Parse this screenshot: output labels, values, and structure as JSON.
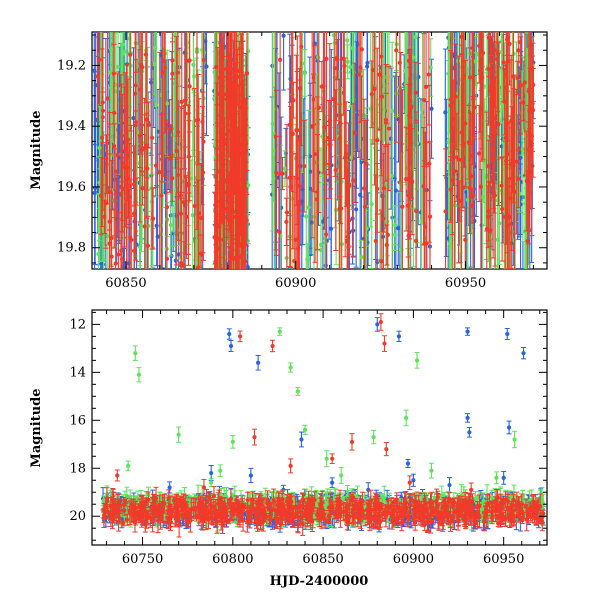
{
  "chart_data": [
    {
      "type": "scatter",
      "panel": "top",
      "xlabel": "",
      "ylabel": "Magnitude",
      "xlim": [
        60840,
        60974
      ],
      "ylim": [
        19.87,
        19.09
      ],
      "y_inverted": true,
      "xticks": [
        60850,
        60900,
        60950
      ],
      "yticks": [
        19.2,
        19.4,
        19.6,
        19.8
      ],
      "series": [
        {
          "color": "#2a62e0",
          "segments": [
            [
              60840,
              60874,
              19.1,
              19.87
            ],
            [
              60876,
              60886,
              19.15,
              19.87
            ],
            [
              60892,
              60940,
              19.1,
              19.87
            ],
            [
              60944,
              60970,
              19.1,
              19.8
            ]
          ],
          "n": 380,
          "seed": 11
        },
        {
          "color": "#5ee35b",
          "segments": [
            [
              60841,
              60873,
              19.1,
              19.87
            ],
            [
              60876,
              60886,
              19.15,
              19.85
            ],
            [
              60893,
              60940,
              19.1,
              19.85
            ],
            [
              60944,
              60970,
              19.1,
              19.8
            ]
          ],
          "n": 380,
          "seed": 23
        },
        {
          "color": "#f23a2a",
          "segments": [
            [
              60841,
              60873,
              19.15,
              19.87
            ],
            [
              60876,
              60886,
              19.2,
              19.85
            ],
            [
              60894,
              60940,
              19.12,
              19.85
            ],
            [
              60944,
              60970,
              19.1,
              19.8
            ]
          ],
          "n": 440,
          "seed": 37
        }
      ]
    },
    {
      "type": "scatter",
      "panel": "bottom",
      "xlabel": "HJD-2400000",
      "ylabel": "Magnitude",
      "xlim": [
        60722,
        60974
      ],
      "ylim": [
        21.2,
        11.4
      ],
      "y_inverted": true,
      "xticks": [
        60750,
        60800,
        60850,
        60900,
        60950
      ],
      "yticks": [
        12,
        14,
        16,
        18,
        20
      ],
      "series": [
        {
          "color": "#2a62e0",
          "band": [
            60728,
            60972,
            19.3,
            20.1
          ],
          "n": 600,
          "seed": 51,
          "outliers": [
            [
              60798,
              12.4
            ],
            [
              60799,
              12.9
            ],
            [
              60814,
              13.6
            ],
            [
              60838,
              16.8
            ],
            [
              60880,
              12.0
            ],
            [
              60892,
              12.5
            ],
            [
              60897,
              17.8
            ],
            [
              60930,
              12.3
            ],
            [
              60930,
              15.9
            ],
            [
              60931,
              16.5
            ],
            [
              60952,
              12.4
            ],
            [
              60953,
              16.3
            ],
            [
              60961,
              13.2
            ],
            [
              60788,
              18.2
            ],
            [
              60810,
              18.3
            ],
            [
              60855,
              18.6
            ],
            [
              60875,
              18.9
            ],
            [
              60900,
              18.5
            ],
            [
              60920,
              18.7
            ],
            [
              60950,
              18.4
            ],
            [
              60765,
              18.8
            ],
            [
              60828,
              18.9
            ]
          ]
        },
        {
          "color": "#5ee35b",
          "band": [
            60728,
            60972,
            19.2,
            20.0
          ],
          "n": 520,
          "seed": 63,
          "outliers": [
            [
              60746,
              13.2
            ],
            [
              60748,
              14.1
            ],
            [
              60770,
              16.6
            ],
            [
              60800,
              16.9
            ],
            [
              60826,
              12.3
            ],
            [
              60832,
              13.8
            ],
            [
              60836,
              14.8
            ],
            [
              60840,
              16.4
            ],
            [
              60878,
              16.7
            ],
            [
              60896,
              15.9
            ],
            [
              60902,
              13.5
            ],
            [
              60956,
              16.8
            ],
            [
              60742,
              17.9
            ],
            [
              60793,
              18.1
            ],
            [
              60860,
              18.3
            ],
            [
              60910,
              18.1
            ],
            [
              60946,
              18.4
            ],
            [
              60852,
              17.6
            ],
            [
              60788,
              18.6
            ]
          ]
        },
        {
          "color": "#f23a2a",
          "band": [
            60728,
            60972,
            19.3,
            20.2
          ],
          "n": 680,
          "seed": 79,
          "outliers": [
            [
              60804,
              12.5
            ],
            [
              60822,
              12.9
            ],
            [
              60812,
              16.7
            ],
            [
              60832,
              17.9
            ],
            [
              60855,
              17.6
            ],
            [
              60866,
              16.9
            ],
            [
              60882,
              11.9
            ],
            [
              60884,
              12.8
            ],
            [
              60885,
              17.2
            ],
            [
              60736,
              18.3
            ],
            [
              60784,
              18.8
            ],
            [
              60898,
              18.6
            ],
            [
              60932,
              18.9
            ]
          ]
        }
      ]
    }
  ]
}
